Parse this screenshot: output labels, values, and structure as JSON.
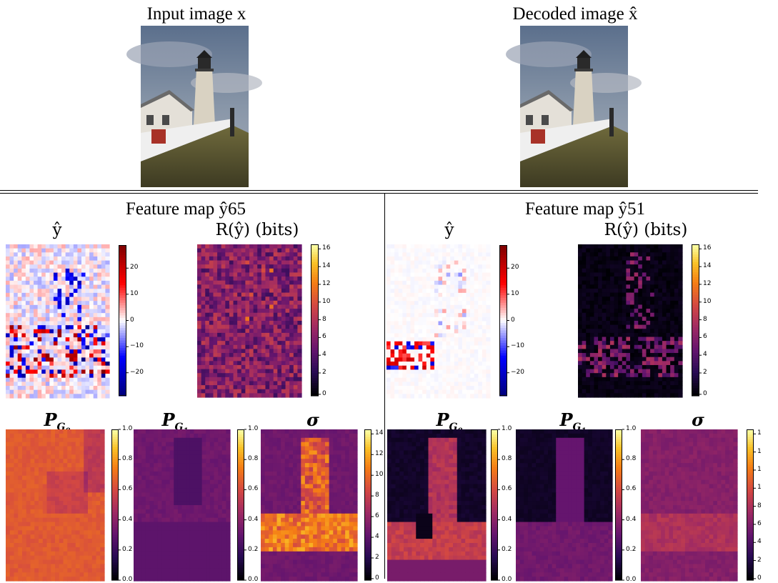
{
  "top": {
    "left_title": "Input image x",
    "right_title": "Decoded image x̂"
  },
  "panels": [
    {
      "title": "Feature map ŷ65",
      "y_label": "ŷ",
      "r_label": "R(ŷ) (bits)",
      "y_ticks": [
        "20",
        "10",
        "0",
        "−10",
        "−20"
      ],
      "r_ticks": [
        "16",
        "14",
        "12",
        "10",
        "8",
        "6",
        "4",
        "2",
        "0"
      ],
      "pg0_label": "PG0",
      "pg1_label": "PG1",
      "sigma_label": "σ",
      "prob_ticks": [
        "1.0",
        "0.8",
        "0.6",
        "0.4",
        "0.2",
        "0.0"
      ],
      "sigma_ticks": [
        "14",
        "12",
        "10",
        "8",
        "6",
        "4",
        "2",
        "0"
      ]
    },
    {
      "title": "Feature map ŷ51",
      "y_label": "ŷ",
      "r_label": "R(ŷ) (bits)",
      "y_ticks": [
        "20",
        "10",
        "0",
        "−10",
        "−20"
      ],
      "r_ticks": [
        "16",
        "14",
        "12",
        "10",
        "8",
        "6",
        "4",
        "2",
        "0"
      ],
      "pg0_label": "PG0",
      "pg1_label": "PG1",
      "sigma_label": "σ",
      "prob_ticks": [
        "1.0",
        "0.8",
        "0.6",
        "0.4",
        "0.2",
        "0.0"
      ],
      "sigma_ticks": [
        "1",
        "1",
        "1",
        "1",
        "8",
        "6",
        "4",
        "2",
        "0"
      ]
    }
  ],
  "colors": {
    "seismic_top": "#7f0000",
    "seismic_bottom": "#00007f",
    "inferno_top": "#fcffa4",
    "inferno_mid": "#bc3754",
    "inferno_bottom": "#000004"
  }
}
